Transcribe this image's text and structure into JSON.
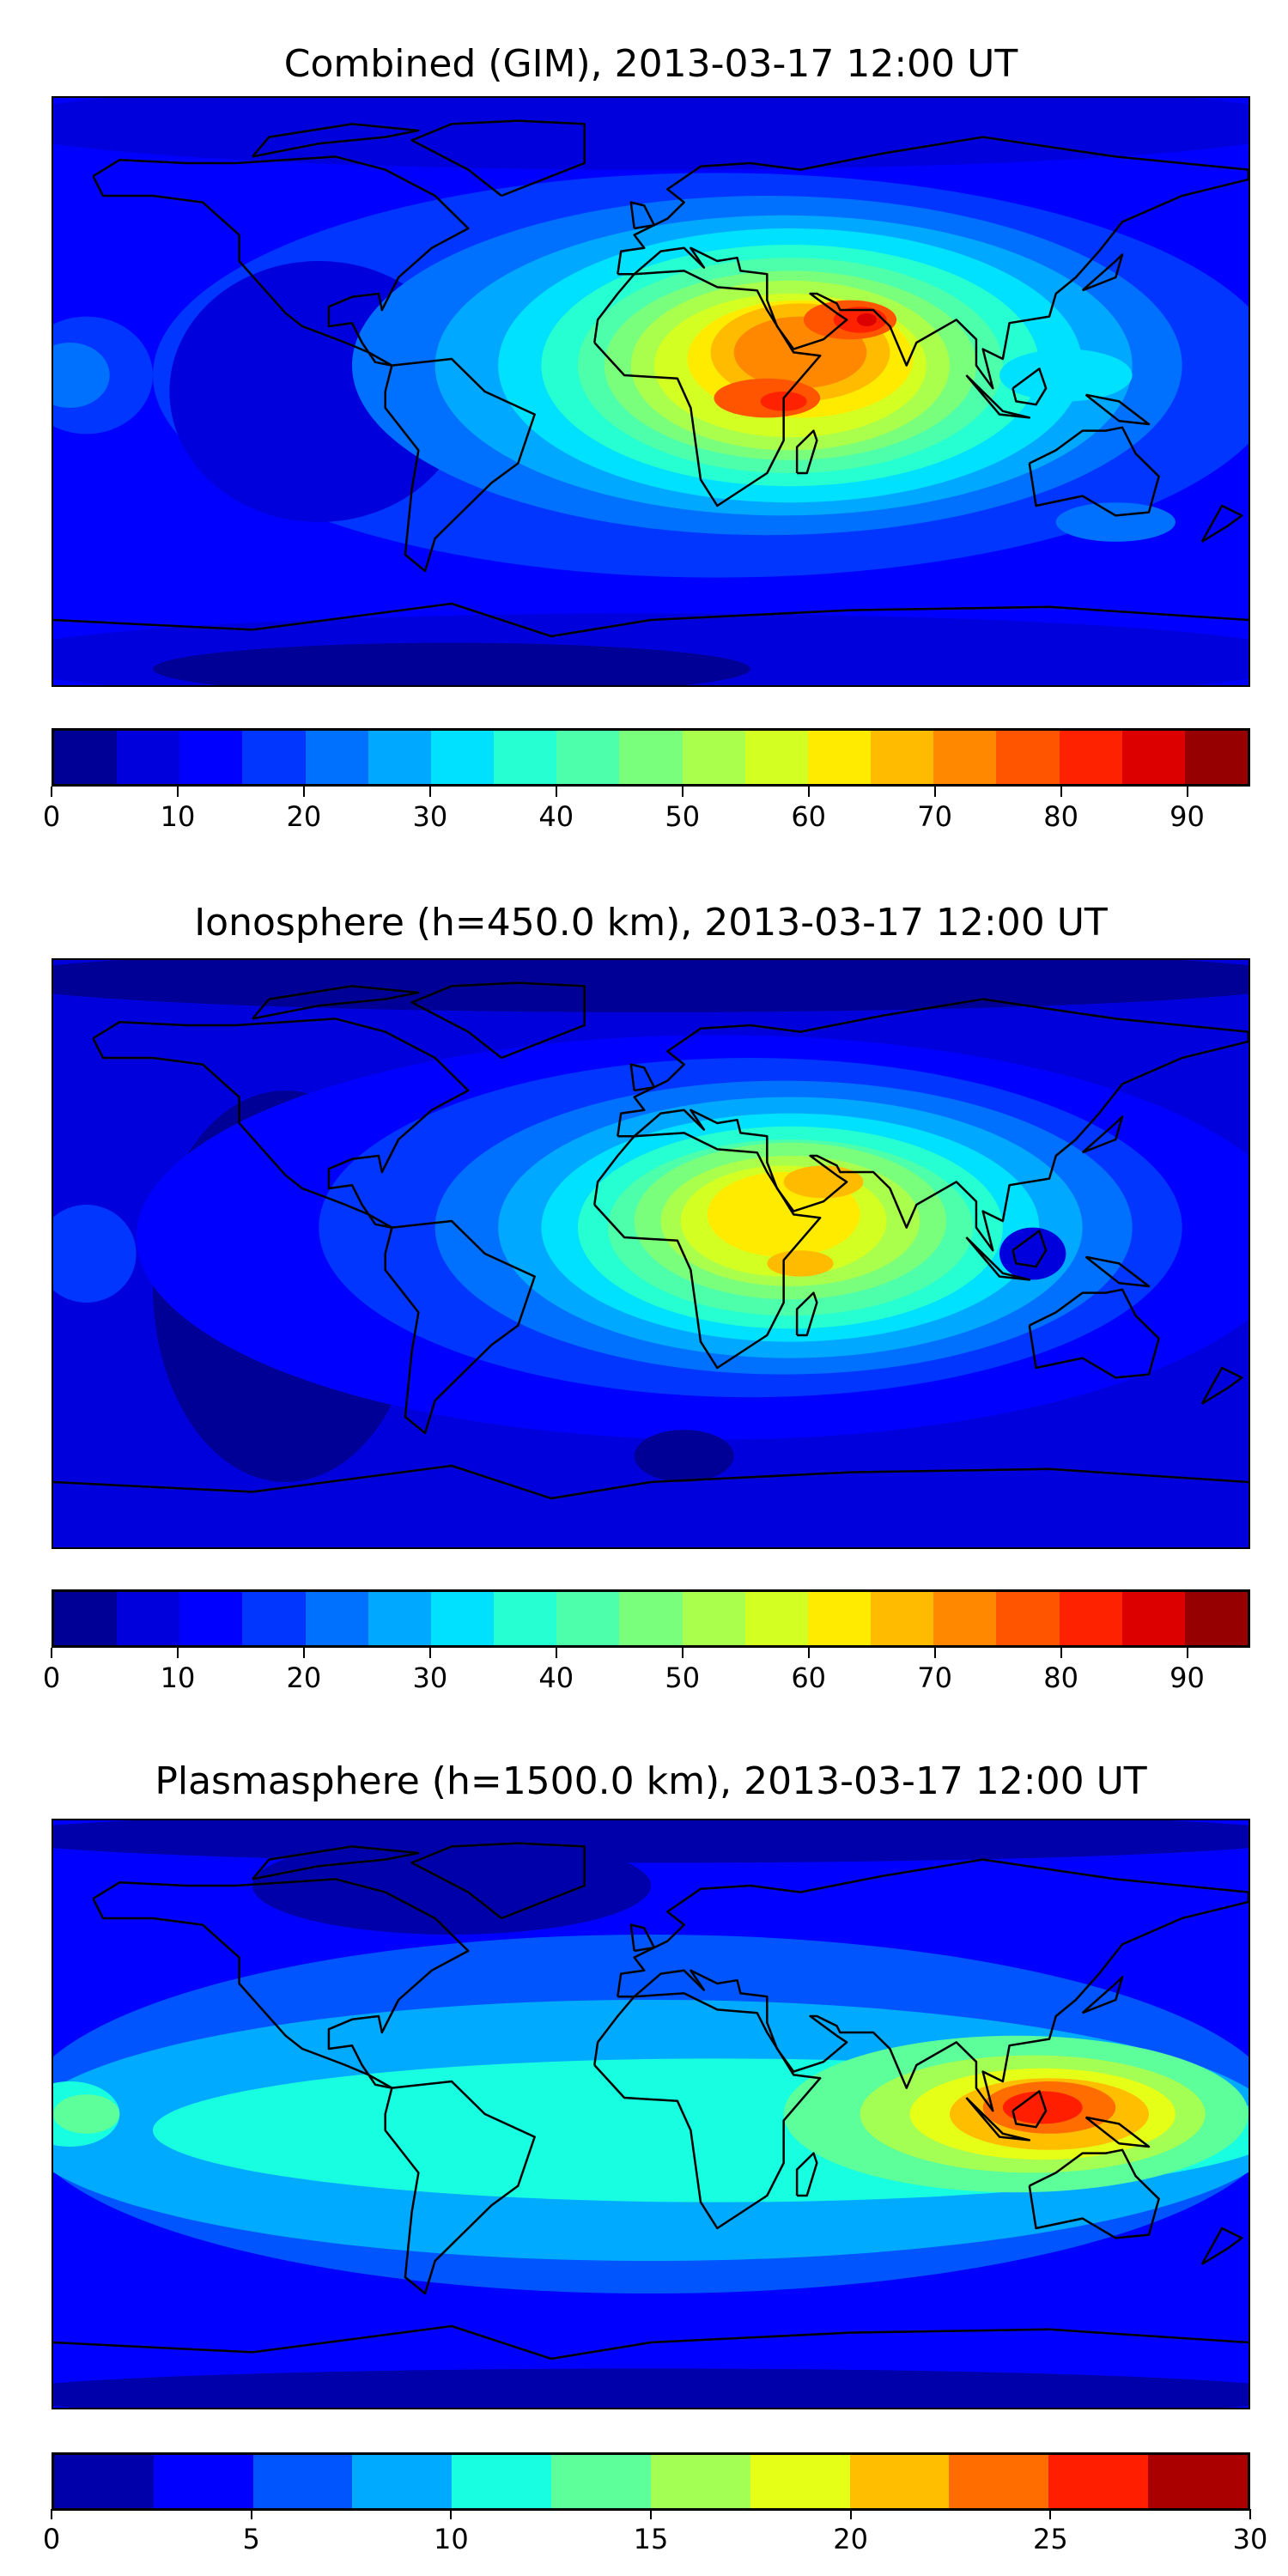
{
  "chart_data": [
    {
      "type": "heatmap",
      "title": "Combined (GIM), 2013-03-17 12:00 UT",
      "xlabel": "",
      "ylabel": "",
      "projection": "world map, longitude -180 to 180, latitude -90 to 90",
      "colorbar": {
        "range": [
          0,
          95
        ],
        "step": 5,
        "ticks": [
          0,
          10,
          20,
          30,
          40,
          50,
          60,
          70,
          80,
          90
        ],
        "tick_labels": [
          "0",
          "10",
          "20",
          "30",
          "40",
          "50",
          "60",
          "70",
          "80",
          "90"
        ],
        "colors": [
          "#000096",
          "#0000dc",
          "#0000ff",
          "#0036ff",
          "#0070ff",
          "#00a8ff",
          "#00e0ff",
          "#26ffd1",
          "#4dffaa",
          "#7aff7d",
          "#aaff4d",
          "#d4ff23",
          "#ffeb00",
          "#ffbb00",
          "#ff8800",
          "#ff5500",
          "#ff2200",
          "#dc0000",
          "#960000"
        ]
      },
      "features": {
        "background_level": 10,
        "maximum_region": "Arabia / East Africa",
        "peak_level_approx": 85
      }
    },
    {
      "type": "heatmap",
      "title": "Ionosphere  (h=450.0 km), 2013-03-17 12:00 UT",
      "xlabel": "",
      "ylabel": "",
      "projection": "world map, longitude -180 to 180, latitude -90 to 90",
      "colorbar": {
        "range": [
          0,
          95
        ],
        "step": 5,
        "ticks": [
          0,
          10,
          20,
          30,
          40,
          50,
          60,
          70,
          80,
          90
        ],
        "tick_labels": [
          "0",
          "10",
          "20",
          "30",
          "40",
          "50",
          "60",
          "70",
          "80",
          "90"
        ],
        "colors": [
          "#000096",
          "#0000dc",
          "#0000ff",
          "#0036ff",
          "#0070ff",
          "#00a8ff",
          "#00e0ff",
          "#26ffd1",
          "#4dffaa",
          "#7aff7d",
          "#aaff4d",
          "#d4ff23",
          "#ffeb00",
          "#ffbb00",
          "#ff8800",
          "#ff5500",
          "#ff2200",
          "#dc0000",
          "#960000"
        ]
      },
      "features": {
        "background_level": 5,
        "maximum_region": "Arabia / East Africa",
        "peak_level_approx": 70
      }
    },
    {
      "type": "heatmap",
      "title": "Plasmasphere (h=1500.0 km), 2013-03-17 12:00 UT",
      "xlabel": "",
      "ylabel": "",
      "projection": "world map, longitude -180 to 180, latitude -90 to 90",
      "colorbar": {
        "range": [
          0,
          30
        ],
        "step": 2.5,
        "ticks": [
          0,
          5,
          10,
          15,
          20,
          25,
          30
        ],
        "tick_labels": [
          "0",
          "5",
          "10",
          "15",
          "20",
          "25",
          "30"
        ],
        "colors": [
          "#0000aa",
          "#0000ff",
          "#0055ff",
          "#00aaff",
          "#17ffe0",
          "#5cff9a",
          "#a3ff53",
          "#e6ff16",
          "#ffbe00",
          "#ff6d00",
          "#ff1e00",
          "#aa0000"
        ]
      },
      "features": {
        "background_level": 2.5,
        "maximum_region": "Indonesia",
        "peak_level_approx": 25
      }
    }
  ]
}
